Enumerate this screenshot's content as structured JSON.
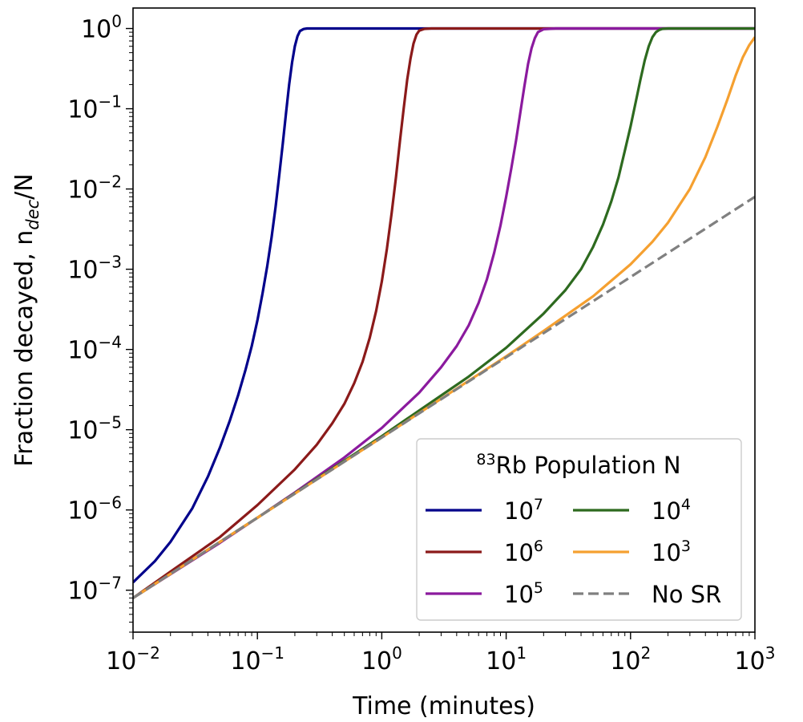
{
  "chart_data": {
    "type": "line",
    "title": "",
    "xlabel": "Time (minutes)",
    "ylabel": {
      "prefix": "Fraction decayed, n",
      "subscript": "dec",
      "suffix": "/N"
    },
    "xscale": "log",
    "yscale": "log",
    "xlim": [
      0.01,
      1000
    ],
    "ylim": [
      3e-08,
      1.8
    ],
    "x_ticks": [
      {
        "value": 0.01,
        "base": "10",
        "exp": "−2"
      },
      {
        "value": 0.1,
        "base": "10",
        "exp": "−1"
      },
      {
        "value": 1,
        "base": "10",
        "exp": "0"
      },
      {
        "value": 10,
        "base": "10",
        "exp": "1"
      },
      {
        "value": 100,
        "base": "10",
        "exp": "2"
      },
      {
        "value": 1000,
        "base": "10",
        "exp": "3"
      }
    ],
    "y_ticks": [
      {
        "value": 1e-07,
        "base": "10",
        "exp": "−7"
      },
      {
        "value": 1e-06,
        "base": "10",
        "exp": "−6"
      },
      {
        "value": 1e-05,
        "base": "10",
        "exp": "−5"
      },
      {
        "value": 0.0001,
        "base": "10",
        "exp": "−4"
      },
      {
        "value": 0.001,
        "base": "10",
        "exp": "−3"
      },
      {
        "value": 0.01,
        "base": "10",
        "exp": "−2"
      },
      {
        "value": 0.1,
        "base": "10",
        "exp": "−1"
      },
      {
        "value": 1,
        "base": "10",
        "exp": "0"
      }
    ],
    "grid": false,
    "legend": {
      "title_sup": "83",
      "title_rest": "Rb Population N",
      "location": "lower-right",
      "columns": 2
    },
    "series": [
      {
        "name": "10^7",
        "label_base": "10",
        "label_exp": "7",
        "color": "#00008b",
        "dash": "solid",
        "x": [
          0.01,
          0.015,
          0.02,
          0.03,
          0.04,
          0.05,
          0.06,
          0.07,
          0.08,
          0.09,
          0.1,
          0.11,
          0.12,
          0.13,
          0.14,
          0.15,
          0.16,
          0.17,
          0.18,
          0.19,
          0.2,
          0.21,
          0.22,
          0.235,
          0.25,
          0.3,
          1000
        ],
        "y": [
          1.25e-07,
          2.3e-07,
          4e-07,
          1.05e-06,
          2.6e-06,
          6e-06,
          1.3e-05,
          2.7e-05,
          5.5e-05,
          0.00011,
          0.00023,
          0.0005,
          0.0011,
          0.0025,
          0.006,
          0.015,
          0.037,
          0.09,
          0.2,
          0.38,
          0.6,
          0.8,
          0.93,
          0.985,
          1.0,
          1.0,
          1.0
        ]
      },
      {
        "name": "10^6",
        "label_base": "10",
        "label_exp": "6",
        "color": "#8b1a1a",
        "dash": "solid",
        "x": [
          0.01,
          0.02,
          0.05,
          0.1,
          0.2,
          0.3,
          0.4,
          0.5,
          0.6,
          0.7,
          0.8,
          0.9,
          1.0,
          1.1,
          1.2,
          1.3,
          1.4,
          1.5,
          1.6,
          1.7,
          1.8,
          1.9,
          2.0,
          2.2,
          2.5,
          3.0,
          1000
        ],
        "y": [
          8e-08,
          1.7e-07,
          4.6e-07,
          1.15e-06,
          3.2e-06,
          6.5e-06,
          1.2e-05,
          2.1e-05,
          3.8e-05,
          7e-05,
          0.00014,
          0.0003,
          0.0007,
          0.0018,
          0.005,
          0.014,
          0.04,
          0.1,
          0.23,
          0.42,
          0.65,
          0.84,
          0.94,
          0.99,
          1.0,
          1.0,
          1.0
        ]
      },
      {
        "name": "10^5",
        "label_base": "10",
        "label_exp": "5",
        "color": "#8b1a9e",
        "dash": "solid",
        "x": [
          0.01,
          0.05,
          0.1,
          0.2,
          0.5,
          1,
          2,
          3,
          4,
          5,
          6,
          7,
          8,
          9,
          10,
          11,
          12,
          13,
          14,
          15,
          16,
          17,
          18,
          20,
          25,
          30,
          1000
        ],
        "y": [
          8e-08,
          3.9e-07,
          8e-07,
          1.65e-06,
          4.5e-06,
          1.05e-05,
          2.9e-05,
          6e-05,
          0.00011,
          0.0002,
          0.00038,
          0.00075,
          0.0016,
          0.0035,
          0.008,
          0.018,
          0.04,
          0.09,
          0.19,
          0.36,
          0.57,
          0.76,
          0.9,
          0.98,
          1.0,
          1.0,
          1.0
        ]
      },
      {
        "name": "10^4",
        "label_base": "10",
        "label_exp": "4",
        "color": "#2d6a1f",
        "dash": "solid",
        "x": [
          0.01,
          0.1,
          1,
          5,
          10,
          20,
          30,
          40,
          50,
          60,
          70,
          80,
          90,
          100,
          110,
          120,
          130,
          140,
          150,
          160,
          170,
          180,
          200,
          250,
          300,
          1000
        ],
        "y": [
          8e-08,
          8e-07,
          8.3e-06,
          4.6e-05,
          0.000105,
          0.00028,
          0.00055,
          0.001,
          0.0019,
          0.0036,
          0.007,
          0.014,
          0.03,
          0.06,
          0.12,
          0.23,
          0.4,
          0.6,
          0.78,
          0.9,
          0.96,
          0.99,
          1.0,
          1.0,
          1.0,
          1.0
        ]
      },
      {
        "name": "10^3",
        "label_base": "10",
        "label_exp": "3",
        "color": "#f5a030",
        "dash": "solid",
        "x": [
          0.01,
          0.1,
          1,
          10,
          20,
          50,
          100,
          150,
          200,
          300,
          400,
          500,
          600,
          700,
          800,
          900,
          1000
        ],
        "y": [
          8e-08,
          8e-07,
          8e-06,
          8.2e-05,
          0.00017,
          0.00046,
          0.00115,
          0.0022,
          0.0038,
          0.01,
          0.025,
          0.06,
          0.13,
          0.26,
          0.44,
          0.62,
          0.78
        ]
      },
      {
        "name": "No SR",
        "label_base": "No SR",
        "label_exp": "",
        "color": "#808080",
        "dash": "dashed",
        "x": [
          0.01,
          1000
        ],
        "y": [
          8e-08,
          0.008
        ]
      }
    ]
  }
}
